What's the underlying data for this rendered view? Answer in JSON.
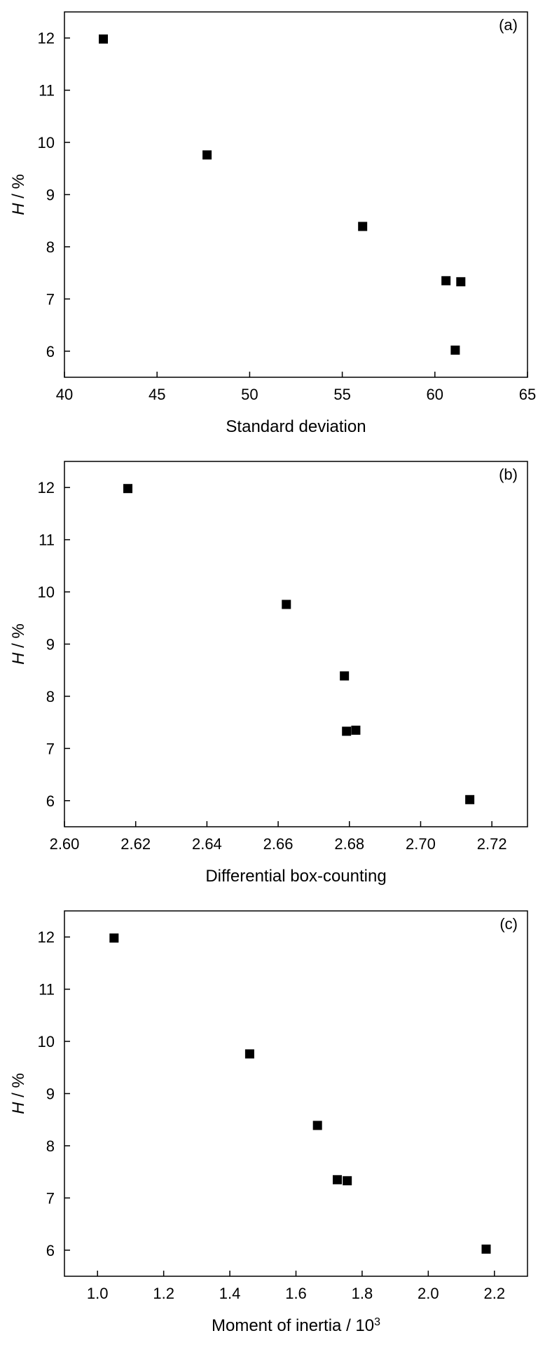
{
  "chart_data": [
    {
      "type": "scatter",
      "panel_label": "(a)",
      "xlabel": "Standard deviation",
      "ylabel_italic": "H",
      "ylabel_rest": " / %",
      "xlim": [
        40,
        65
      ],
      "ylim": [
        5.5,
        12.5
      ],
      "xticks": [
        40,
        45,
        50,
        55,
        60,
        65
      ],
      "yticks": [
        6,
        7,
        8,
        9,
        10,
        11,
        12
      ],
      "xtick_decimals": 0,
      "marker": "filled-square",
      "points": [
        {
          "x": 42.1,
          "y": 11.98
        },
        {
          "x": 47.7,
          "y": 9.76
        },
        {
          "x": 56.1,
          "y": 8.39
        },
        {
          "x": 60.6,
          "y": 7.35
        },
        {
          "x": 61.4,
          "y": 7.33
        },
        {
          "x": 61.1,
          "y": 6.02
        }
      ]
    },
    {
      "type": "scatter",
      "panel_label": "(b)",
      "xlabel": "Differential box-counting",
      "ylabel_italic": "H",
      "ylabel_rest": " / %",
      "xlim": [
        2.6,
        2.73
      ],
      "ylim": [
        5.5,
        12.5
      ],
      "xticks": [
        2.6,
        2.62,
        2.64,
        2.66,
        2.68,
        2.7,
        2.72
      ],
      "yticks": [
        6,
        7,
        8,
        9,
        10,
        11,
        12
      ],
      "xtick_decimals": 2,
      "marker": "filled-square",
      "points": [
        {
          "x": 2.6178,
          "y": 11.98
        },
        {
          "x": 2.6623,
          "y": 9.76
        },
        {
          "x": 2.6786,
          "y": 8.39
        },
        {
          "x": 2.6792,
          "y": 7.33
        },
        {
          "x": 2.6818,
          "y": 7.35
        },
        {
          "x": 2.7138,
          "y": 6.02
        }
      ]
    },
    {
      "type": "scatter",
      "panel_label": "(c)",
      "xlabel": "Moment of inertia / 10",
      "xlabel_sup": "3",
      "ylabel_italic": "H",
      "ylabel_rest": " / %",
      "xlim": [
        0.9,
        2.3
      ],
      "ylim": [
        5.5,
        12.5
      ],
      "xticks": [
        1.0,
        1.2,
        1.4,
        1.6,
        1.8,
        2.0,
        2.2
      ],
      "yticks": [
        6,
        7,
        8,
        9,
        10,
        11,
        12
      ],
      "xtick_decimals": 1,
      "marker": "filled-square",
      "points": [
        {
          "x": 1.05,
          "y": 11.98
        },
        {
          "x": 1.46,
          "y": 9.76
        },
        {
          "x": 1.665,
          "y": 8.39
        },
        {
          "x": 1.725,
          "y": 7.35
        },
        {
          "x": 1.755,
          "y": 7.33
        },
        {
          "x": 2.175,
          "y": 6.02
        }
      ]
    }
  ]
}
